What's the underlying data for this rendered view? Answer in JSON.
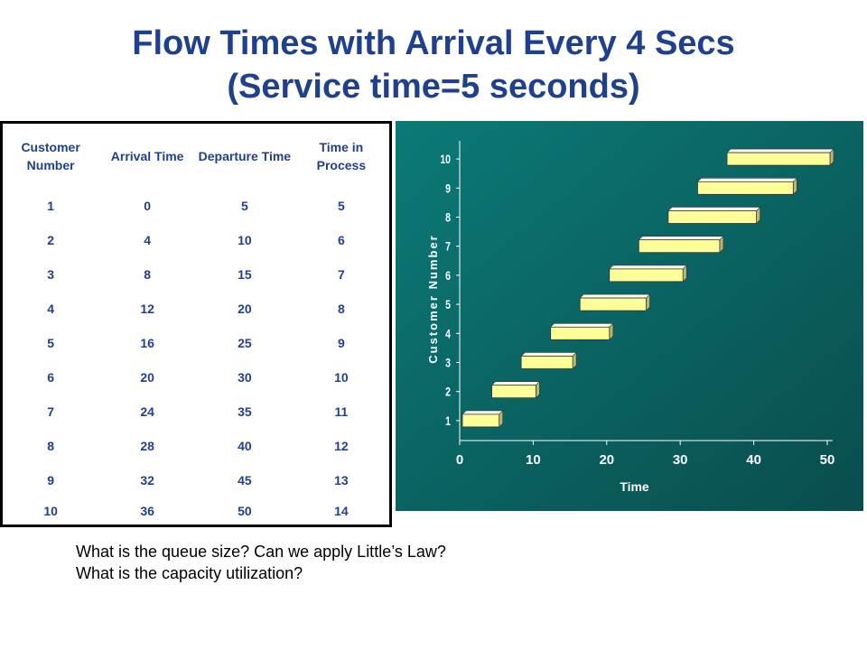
{
  "title_line1": "Flow Times with Arrival Every 4 Secs",
  "title_line2": "(Service time=5 seconds)",
  "table": {
    "headers": [
      "Customer Number",
      "Arrival Time",
      "Departure Time",
      "Time in Process"
    ],
    "rows": [
      [
        "1",
        "0",
        "5",
        "5"
      ],
      [
        "2",
        "4",
        "10",
        "6"
      ],
      [
        "3",
        "8",
        "15",
        "7"
      ],
      [
        "4",
        "12",
        "20",
        "8"
      ],
      [
        "5",
        "16",
        "25",
        "9"
      ],
      [
        "6",
        "20",
        "30",
        "10"
      ],
      [
        "7",
        "24",
        "35",
        "11"
      ],
      [
        "8",
        "28",
        "40",
        "12"
      ],
      [
        "9",
        "32",
        "45",
        "13"
      ],
      [
        "10",
        "36",
        "50",
        "14"
      ]
    ]
  },
  "chart_data": {
    "type": "bar",
    "orientation": "horizontal",
    "xlabel": "Time",
    "ylabel": "Customer Number",
    "xlim": [
      0,
      50
    ],
    "xticks": [
      0,
      10,
      20,
      30,
      40,
      50
    ],
    "categories": [
      "1",
      "2",
      "3",
      "4",
      "5",
      "6",
      "7",
      "8",
      "9",
      "10"
    ],
    "series": [
      {
        "start": [
          0,
          4,
          8,
          12,
          16,
          20,
          24,
          28,
          32,
          36
        ],
        "end": [
          5,
          10,
          15,
          20,
          25,
          30,
          35,
          40,
          45,
          50
        ]
      }
    ],
    "colors": {
      "background": "#0b7a76",
      "bar": "#ffff99",
      "bar_shadow": "#b8b870",
      "text": "#ffffff"
    }
  },
  "questions": [
    "What is the queue size? Can we apply Little’s Law?",
    "What is the capacity utilization?"
  ]
}
